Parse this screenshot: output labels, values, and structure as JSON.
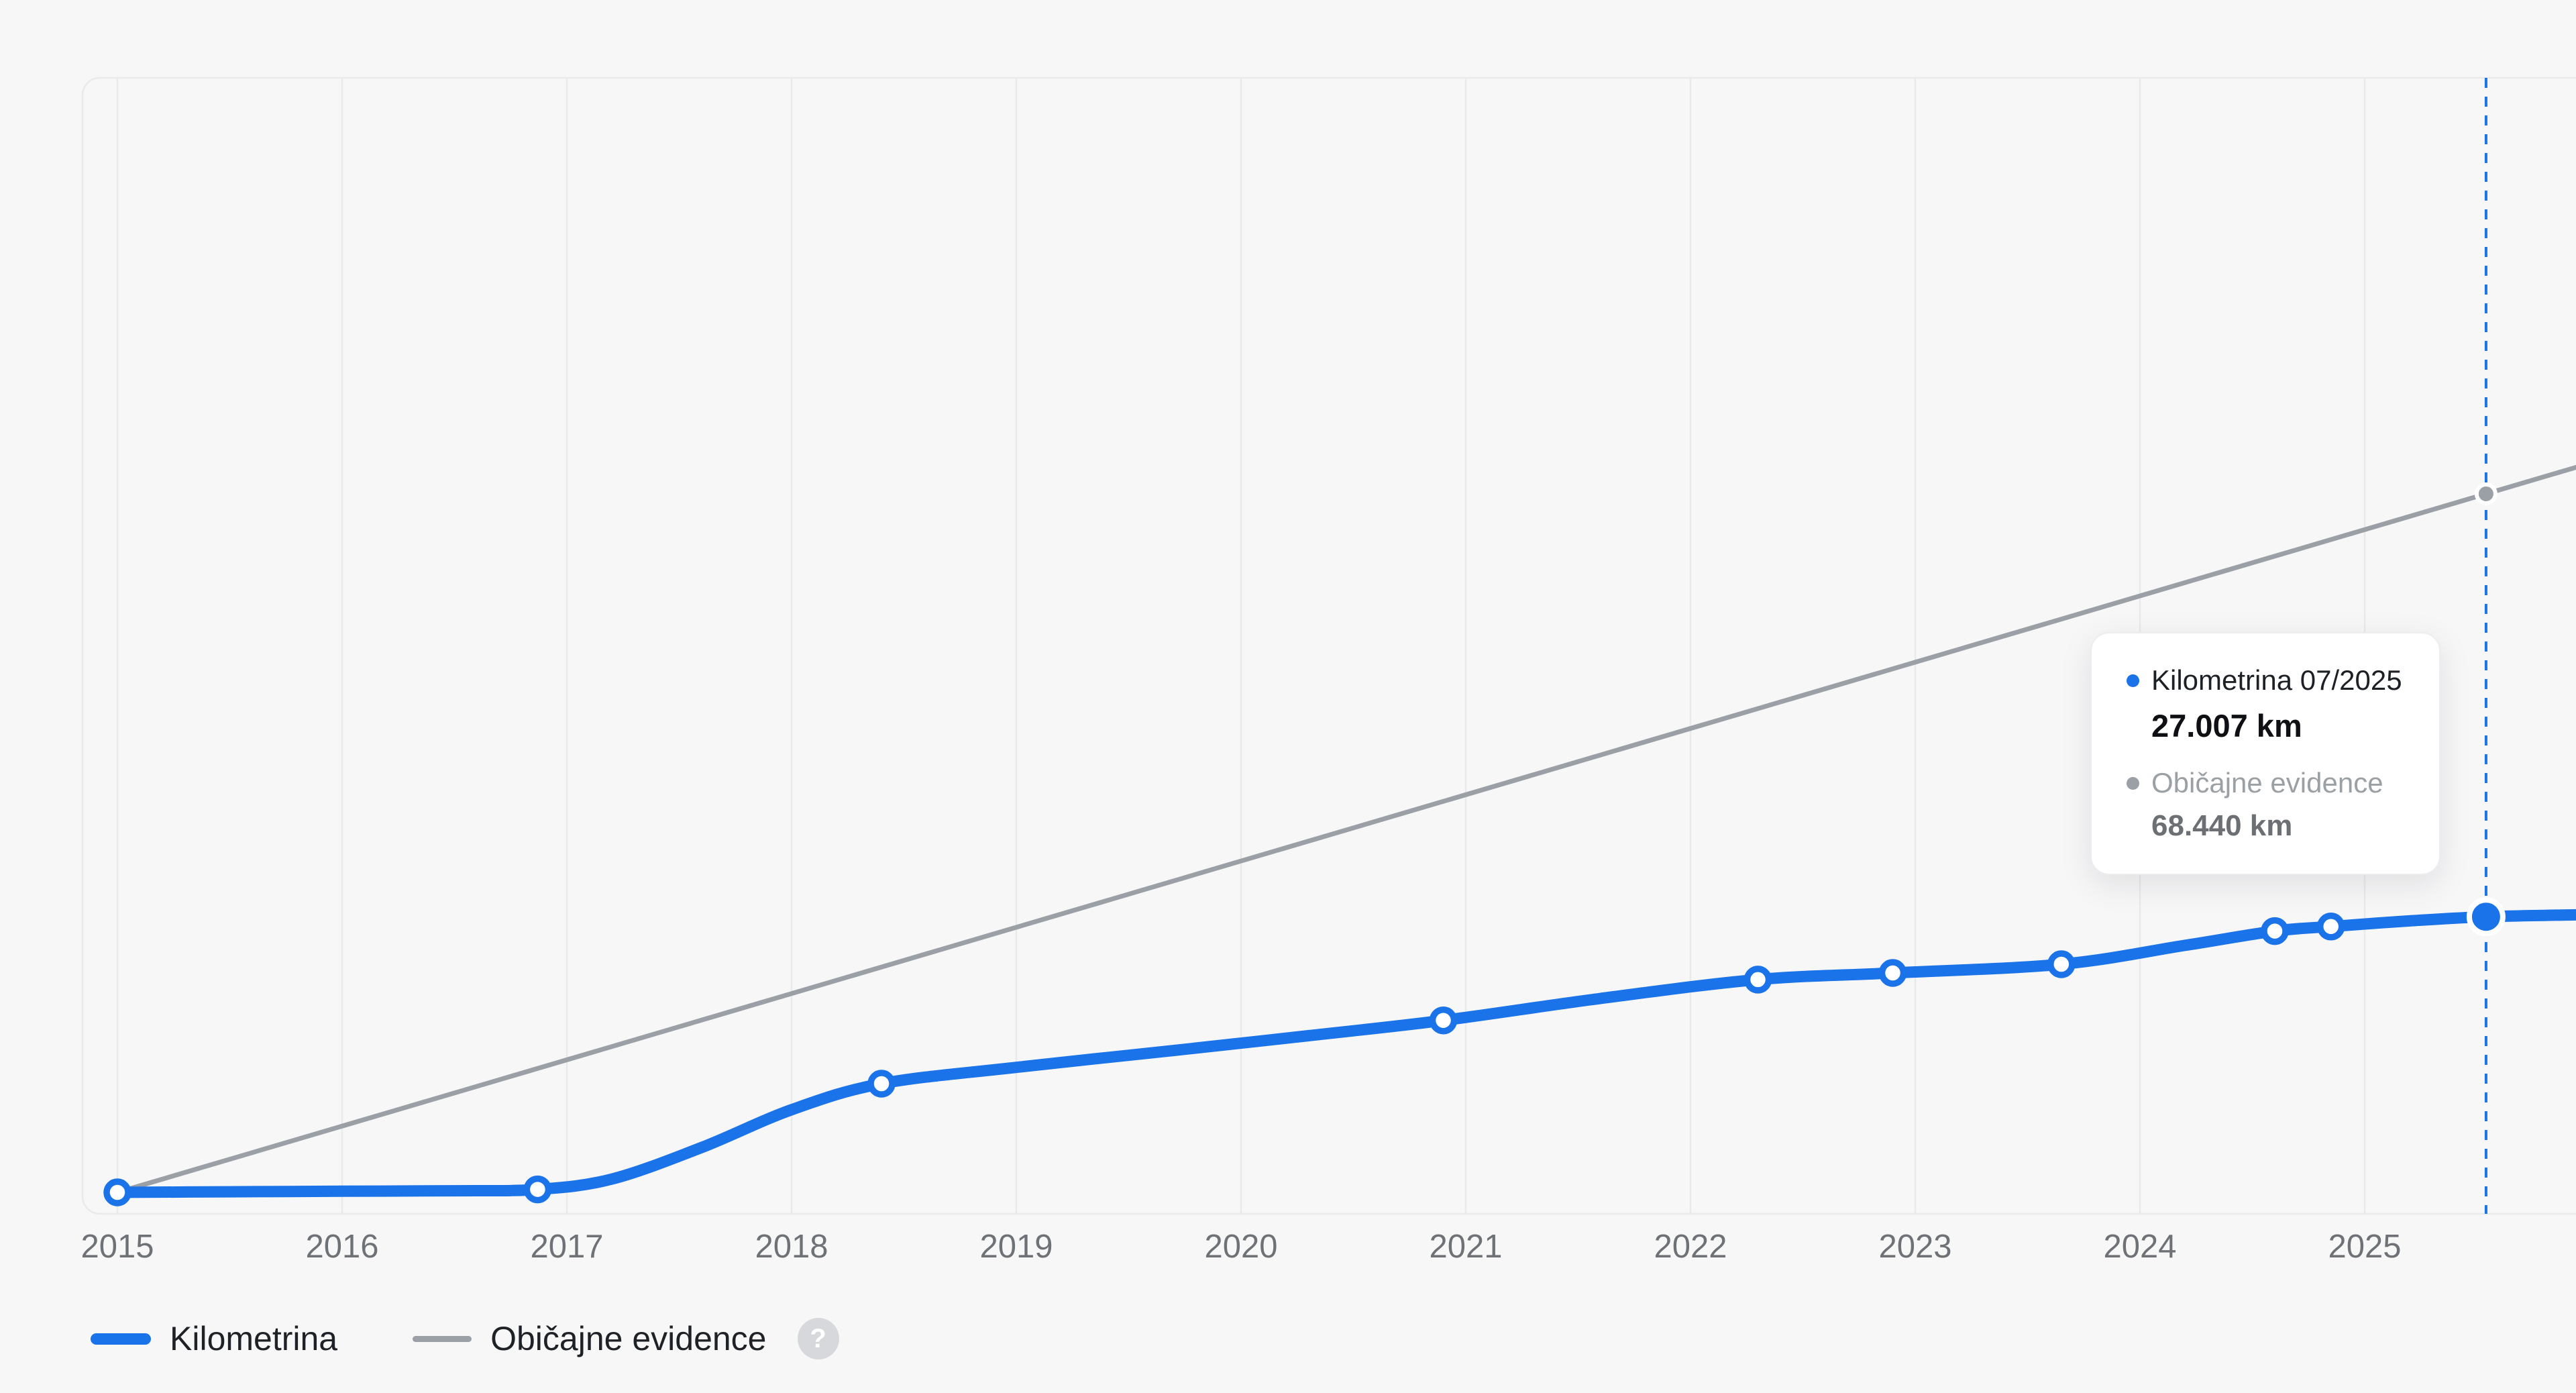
{
  "legend": {
    "items": [
      {
        "label": "Kilometrina",
        "color": "#1a73e8"
      },
      {
        "label": "Običajne evidence",
        "color": "#9aa0a6"
      }
    ],
    "help_label": "?"
  },
  "tooltip": {
    "series1_label": "Kilometrina 07/2025",
    "series1_value": "27.007 km",
    "series2_label": "Običajne evidence",
    "series2_value": "68.440 km"
  },
  "chart_data": {
    "type": "line",
    "title": "",
    "xlabel": "",
    "ylabel": "",
    "y_unit": "km",
    "x_ticks": [
      "2015",
      "2016",
      "2017",
      "2018",
      "2019",
      "2020",
      "2021",
      "2022",
      "2023",
      "2024",
      "2025"
    ],
    "x_range": [
      2014.84,
      2025.95
    ],
    "y_range": [
      0,
      72600
    ],
    "grid": "vertical",
    "legend_position": "bottom-left",
    "cursor_x": 2025.54,
    "cursor_color": "#1a73e8",
    "series": [
      {
        "name": "Običajne evidence",
        "color": "#9aa0a6",
        "stroke_width": 7,
        "smooth": false,
        "points": [
          [
            2015.0,
            0,
            0
          ],
          [
            2025.54,
            68440,
            3
          ],
          [
            2025.95,
            71100,
            0
          ]
        ]
      },
      {
        "name": "Kilometrina",
        "color": "#1a73e8",
        "stroke_width": 17,
        "smooth": true,
        "points": [
          [
            2015.0,
            0,
            1
          ],
          [
            2015.5,
            60,
            0
          ],
          [
            2016.0,
            110,
            0
          ],
          [
            2016.5,
            160,
            0
          ],
          [
            2016.87,
            290,
            1
          ],
          [
            2017.2,
            1300,
            0
          ],
          [
            2017.6,
            4400,
            0
          ],
          [
            2018.0,
            8100,
            0
          ],
          [
            2018.4,
            10650,
            1
          ],
          [
            2019.0,
            12250,
            0
          ],
          [
            2019.7,
            13900,
            0
          ],
          [
            2020.3,
            15350,
            0
          ],
          [
            2020.9,
            16850,
            1
          ],
          [
            2021.6,
            19000,
            0
          ],
          [
            2022.3,
            20850,
            1
          ],
          [
            2022.9,
            21500,
            1
          ],
          [
            2023.65,
            22350,
            1
          ],
          [
            2024.2,
            24200,
            0
          ],
          [
            2024.6,
            25600,
            1
          ],
          [
            2024.85,
            26050,
            1
          ],
          [
            2025.2,
            26600,
            0
          ],
          [
            2025.54,
            27007,
            2
          ],
          [
            2025.95,
            27200,
            0
          ]
        ]
      }
    ]
  }
}
